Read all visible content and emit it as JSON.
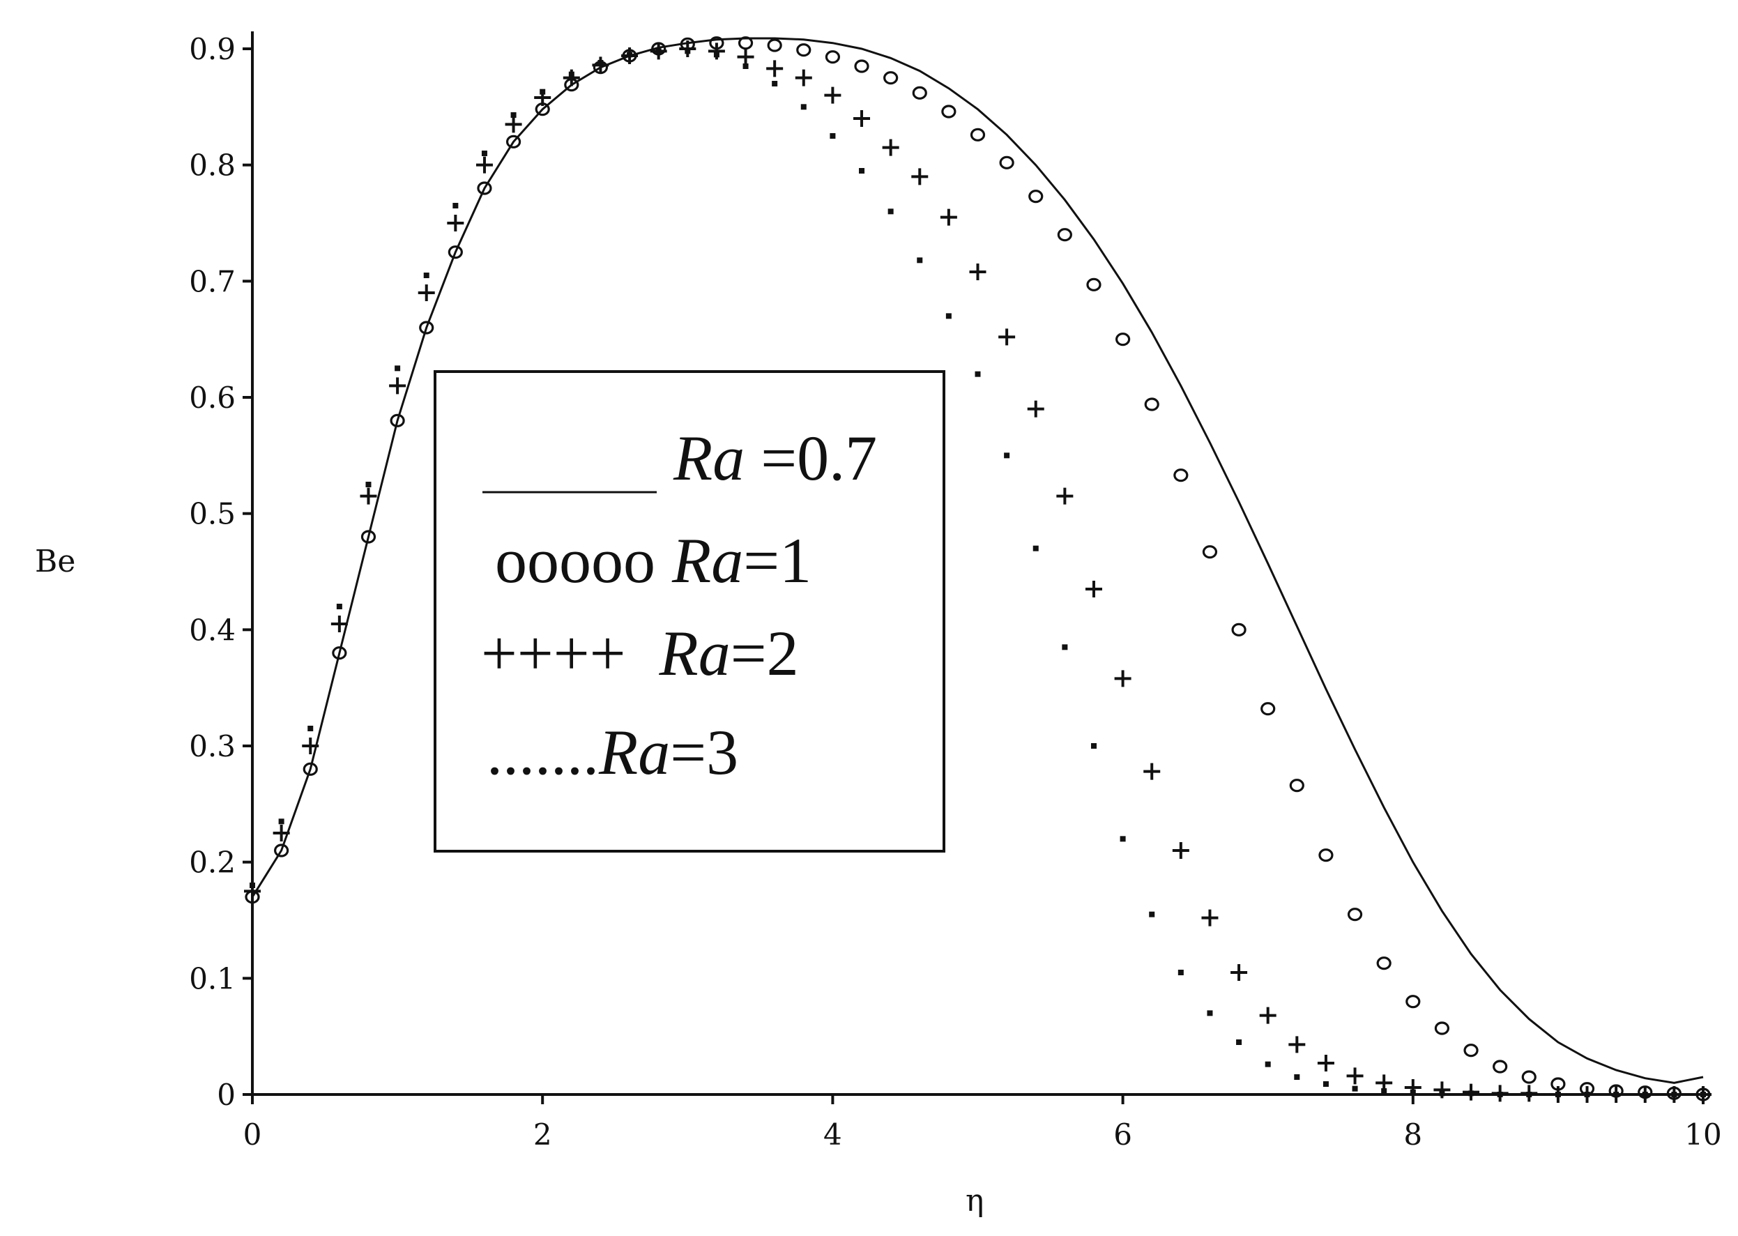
{
  "chart_data": {
    "type": "line",
    "title": "",
    "xlabel": "η",
    "ylabel": "Be",
    "xlim": [
      0,
      10
    ],
    "ylim": [
      0,
      0.9
    ],
    "x_ticks": [
      "0",
      "2",
      "4",
      "6",
      "8",
      "10"
    ],
    "y_ticks": [
      "0",
      "0.1",
      "0.2",
      "0.3",
      "0.4",
      "0.5",
      "0.6",
      "0.7",
      "0.8",
      "0.9"
    ],
    "legend": [
      {
        "marker": "______",
        "prefix": "Ra",
        "suffix": " =0.7"
      },
      {
        "marker": "ooooo",
        "prefix": "Ra",
        "suffix": "=1"
      },
      {
        "marker": "++++",
        "prefix": "Ra",
        "suffix": "=2"
      },
      {
        "marker": ".......",
        "prefix": "Ra",
        "suffix": "=3"
      }
    ],
    "x": [
      0,
      0.2,
      0.4,
      0.6,
      0.8,
      1.0,
      1.2,
      1.4,
      1.6,
      1.8,
      2.0,
      2.2,
      2.4,
      2.6,
      2.8,
      3.0,
      3.2,
      3.4,
      3.6,
      3.8,
      4.0,
      4.2,
      4.4,
      4.6,
      4.8,
      5.0,
      5.2,
      5.4,
      5.6,
      5.8,
      6.0,
      6.2,
      6.4,
      6.6,
      6.8,
      7.0,
      7.2,
      7.4,
      7.6,
      7.8,
      8.0,
      8.2,
      8.4,
      8.6,
      8.8,
      9.0,
      9.2,
      9.4,
      9.6,
      9.8,
      10.0
    ],
    "series": [
      {
        "name": "Ra =0.7",
        "style": "line",
        "values": [
          0.17,
          0.21,
          0.28,
          0.38,
          0.48,
          0.58,
          0.66,
          0.725,
          0.78,
          0.82,
          0.848,
          0.869,
          0.884,
          0.894,
          0.901,
          0.905,
          0.908,
          0.909,
          0.909,
          0.908,
          0.905,
          0.9,
          0.892,
          0.881,
          0.866,
          0.848,
          0.826,
          0.8,
          0.77,
          0.736,
          0.698,
          0.656,
          0.61,
          0.561,
          0.51,
          0.457,
          0.403,
          0.349,
          0.297,
          0.247,
          0.2,
          0.158,
          0.121,
          0.09,
          0.065,
          0.045,
          0.031,
          0.021,
          0.014,
          0.01,
          0.015
        ]
      },
      {
        "name": "Ra=1",
        "style": "circle",
        "values": [
          0.17,
          0.21,
          0.28,
          0.38,
          0.48,
          0.58,
          0.66,
          0.725,
          0.78,
          0.82,
          0.848,
          0.869,
          0.884,
          0.894,
          0.9,
          0.904,
          0.905,
          0.905,
          0.903,
          0.899,
          0.893,
          0.885,
          0.875,
          0.862,
          0.846,
          0.826,
          0.802,
          0.773,
          0.74,
          0.697,
          0.65,
          0.594,
          0.533,
          0.467,
          0.4,
          0.332,
          0.266,
          0.206,
          0.155,
          0.113,
          0.08,
          0.057,
          0.038,
          0.024,
          0.015,
          0.009,
          0.005,
          0.003,
          0.002,
          0.001,
          0.0
        ]
      },
      {
        "name": "Ra=2",
        "style": "plus",
        "values": [
          0.175,
          0.225,
          0.3,
          0.405,
          0.515,
          0.61,
          0.69,
          0.75,
          0.8,
          0.835,
          0.858,
          0.875,
          0.886,
          0.894,
          0.898,
          0.9,
          0.898,
          0.893,
          0.883,
          0.875,
          0.86,
          0.84,
          0.815,
          0.79,
          0.755,
          0.708,
          0.652,
          0.59,
          0.515,
          0.435,
          0.358,
          0.278,
          0.21,
          0.152,
          0.105,
          0.068,
          0.043,
          0.027,
          0.016,
          0.01,
          0.006,
          0.004,
          0.002,
          0.001,
          0.001,
          0.0,
          0.0,
          0.0,
          0.0,
          0.0,
          0.0
        ]
      },
      {
        "name": "Ra=3",
        "style": "dot",
        "values": [
          0.18,
          0.235,
          0.315,
          0.42,
          0.525,
          0.625,
          0.705,
          0.765,
          0.81,
          0.843,
          0.863,
          0.878,
          0.888,
          0.895,
          0.898,
          0.898,
          0.895,
          0.885,
          0.87,
          0.85,
          0.825,
          0.795,
          0.76,
          0.718,
          0.67,
          0.62,
          0.55,
          0.47,
          0.385,
          0.3,
          0.22,
          0.155,
          0.105,
          0.07,
          0.045,
          0.026,
          0.015,
          0.009,
          0.005,
          0.003,
          0.002,
          0.001,
          0.001,
          0.0,
          0.0,
          0.0,
          0.0,
          0.0,
          0.0,
          0.0,
          0.0
        ]
      }
    ],
    "grid": false,
    "legend_position": "center-left"
  }
}
